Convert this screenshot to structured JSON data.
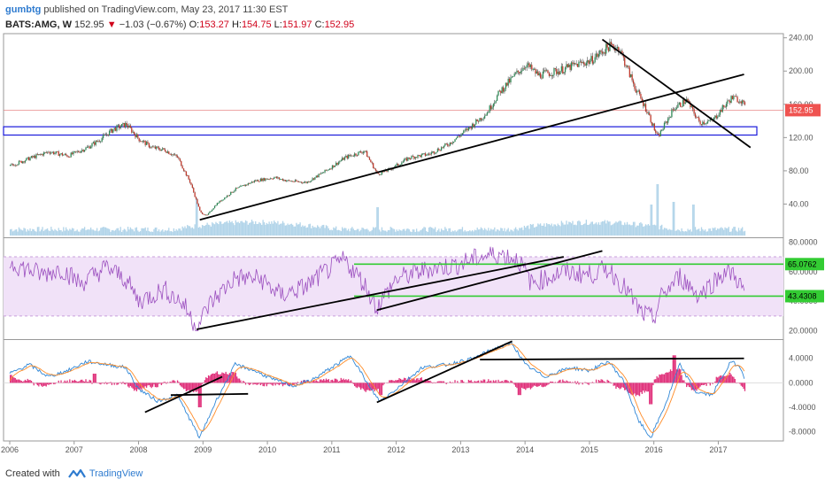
{
  "header": {
    "author": "gumbtg",
    "published_text": " published on TradingView.com, May 23, 2017 11:30 EST",
    "symbol": "BATS:AMG, W",
    "last": "152.95",
    "change": "−1.03 (−0.67%)",
    "open_label": "O:",
    "open": "153.27",
    "high_label": "H:",
    "high": "154.75",
    "low_label": "L:",
    "low": "151.97",
    "close_label": "C:",
    "close": "152.95"
  },
  "footer": {
    "created_with": "Created with",
    "brand": "TradingView",
    "logo_icon": "tradingview-logo-icon"
  },
  "colors": {
    "up": "#2e8b57",
    "down": "#c0392b",
    "volume": "#9ec9e3",
    "rsi_line": "#9b4fbf",
    "rsi_band": "#f1e2f8",
    "green_level": "#33cc33",
    "macd_line": "#2f86d6",
    "signal_line": "#ff8c28",
    "histogram": "#e0307a",
    "zone_border": "#1a1adb",
    "trendline": "#000000",
    "price_label_bg": "#ef5350"
  },
  "chart_data": [
    {
      "type": "candlestick",
      "panel": "price",
      "x_ticks": [
        "2006",
        "2007",
        "2008",
        "2009",
        "2010",
        "2011",
        "2012",
        "2013",
        "2014",
        "2015",
        "2016",
        "2017"
      ],
      "y_ticks": [
        "240.00",
        "200.00",
        "160.00",
        "120.00",
        "80.00",
        "40.00"
      ],
      "ylim": [
        0,
        245
      ],
      "current_price_label": "152.95",
      "anchors": [
        [
          2006.0,
          86
        ],
        [
          2006.3,
          95
        ],
        [
          2006.6,
          103
        ],
        [
          2006.9,
          98
        ],
        [
          2007.2,
          108
        ],
        [
          2007.4,
          118
        ],
        [
          2007.6,
          130
        ],
        [
          2007.8,
          136
        ],
        [
          2008.0,
          118
        ],
        [
          2008.2,
          108
        ],
        [
          2008.4,
          105
        ],
        [
          2008.6,
          96
        ],
        [
          2008.8,
          65
        ],
        [
          2008.95,
          30
        ],
        [
          2009.05,
          26
        ],
        [
          2009.2,
          40
        ],
        [
          2009.5,
          58
        ],
        [
          2009.8,
          68
        ],
        [
          2010.1,
          72
        ],
        [
          2010.3,
          68
        ],
        [
          2010.6,
          66
        ],
        [
          2010.9,
          80
        ],
        [
          2011.2,
          96
        ],
        [
          2011.5,
          104
        ],
        [
          2011.7,
          76
        ],
        [
          2011.9,
          82
        ],
        [
          2012.2,
          96
        ],
        [
          2012.5,
          100
        ],
        [
          2012.8,
          112
        ],
        [
          2013.1,
          130
        ],
        [
          2013.4,
          150
        ],
        [
          2013.6,
          175
        ],
        [
          2013.8,
          192
        ],
        [
          2014.0,
          208
        ],
        [
          2014.2,
          195
        ],
        [
          2014.5,
          200
        ],
        [
          2014.8,
          208
        ],
        [
          2015.0,
          212
        ],
        [
          2015.3,
          230
        ],
        [
          2015.45,
          228
        ],
        [
          2015.7,
          180
        ],
        [
          2015.9,
          150
        ],
        [
          2016.05,
          120
        ],
        [
          2016.3,
          155
        ],
        [
          2016.5,
          165
        ],
        [
          2016.7,
          138
        ],
        [
          2016.9,
          140
        ],
        [
          2017.0,
          150
        ],
        [
          2017.2,
          168
        ],
        [
          2017.35,
          165
        ],
        [
          2017.42,
          153
        ]
      ],
      "volume_spikes": [
        [
          2016.05,
          58
        ],
        [
          2016.3,
          38
        ],
        [
          2011.7,
          32
        ],
        [
          2008.9,
          42
        ],
        [
          2015.95,
          35
        ],
        [
          2016.6,
          35
        ]
      ],
      "horizontal_zone": [
        123,
        133
      ],
      "trendlines": [
        {
          "from": [
            2008.95,
            21
          ],
          "to": [
            2017.4,
            196
          ]
        },
        {
          "from": [
            2015.2,
            238
          ],
          "to": [
            2017.5,
            108
          ]
        }
      ]
    },
    {
      "type": "line",
      "panel": "rsi",
      "name": "",
      "y_ticks": [
        "80.0000",
        "60.0000",
        "40.0000",
        "20.0000"
      ],
      "ylim": [
        15,
        82
      ],
      "band": [
        30,
        70
      ],
      "levels": [
        {
          "value": 65.0762,
          "label": "65.0762"
        },
        {
          "value": 43.4308,
          "label": "43.4308"
        }
      ],
      "anchors": [
        [
          2006.0,
          66
        ],
        [
          2006.5,
          58
        ],
        [
          2006.8,
          62
        ],
        [
          2007.1,
          52
        ],
        [
          2007.5,
          63
        ],
        [
          2007.8,
          55
        ],
        [
          2008.0,
          40
        ],
        [
          2008.4,
          48
        ],
        [
          2008.7,
          38
        ],
        [
          2008.9,
          22
        ],
        [
          2009.1,
          38
        ],
        [
          2009.5,
          56
        ],
        [
          2009.9,
          55
        ],
        [
          2010.2,
          44
        ],
        [
          2010.6,
          50
        ],
        [
          2010.9,
          60
        ],
        [
          2011.2,
          68
        ],
        [
          2011.5,
          52
        ],
        [
          2011.7,
          36
        ],
        [
          2012.0,
          55
        ],
        [
          2012.5,
          62
        ],
        [
          2012.9,
          64
        ],
        [
          2013.3,
          70
        ],
        [
          2013.6,
          72
        ],
        [
          2013.9,
          68
        ],
        [
          2014.1,
          52
        ],
        [
          2014.6,
          60
        ],
        [
          2015.0,
          58
        ],
        [
          2015.3,
          62
        ],
        [
          2015.6,
          46
        ],
        [
          2015.8,
          32
        ],
        [
          2016.0,
          28
        ],
        [
          2016.1,
          42
        ],
        [
          2016.4,
          57
        ],
        [
          2016.7,
          44
        ],
        [
          2016.9,
          52
        ],
        [
          2017.1,
          60
        ],
        [
          2017.25,
          58
        ],
        [
          2017.42,
          45
        ]
      ],
      "trendlines": [
        {
          "from": [
            2008.9,
            21
          ],
          "to": [
            2014.6,
            70
          ]
        },
        {
          "from": [
            2011.7,
            34
          ],
          "to": [
            2015.2,
            74
          ]
        },
        {
          "from": [
            2011.2,
            43.4
          ],
          "to": [
            2014.0,
            43.4
          ]
        }
      ]
    },
    {
      "type": "line",
      "panel": "macd",
      "y_ticks": [
        "4.0000",
        "0.0000",
        "-4.0000",
        "-8.0000"
      ],
      "ylim": [
        -9.5,
        7
      ],
      "macd_anchors": [
        [
          2006.0,
          1.5
        ],
        [
          2006.3,
          3.0
        ],
        [
          2006.6,
          1.0
        ],
        [
          2006.9,
          2.0
        ],
        [
          2007.2,
          3.5
        ],
        [
          2007.5,
          3.0
        ],
        [
          2007.8,
          2.5
        ],
        [
          2008.0,
          -1.0
        ],
        [
          2008.3,
          -3.0
        ],
        [
          2008.6,
          -2.0
        ],
        [
          2008.8,
          -6.0
        ],
        [
          2008.95,
          -9.0
        ],
        [
          2009.2,
          -3.0
        ],
        [
          2009.5,
          3.0
        ],
        [
          2009.8,
          2.0
        ],
        [
          2010.1,
          0.5
        ],
        [
          2010.4,
          -0.5
        ],
        [
          2010.7,
          0.5
        ],
        [
          2011.0,
          2.5
        ],
        [
          2011.3,
          4.5
        ],
        [
          2011.6,
          -1.0
        ],
        [
          2011.75,
          -3.0
        ],
        [
          2012.0,
          -1.0
        ],
        [
          2012.4,
          2.5
        ],
        [
          2012.8,
          3.0
        ],
        [
          2013.2,
          4.0
        ],
        [
          2013.5,
          5.5
        ],
        [
          2013.8,
          6.5
        ],
        [
          2014.0,
          3.0
        ],
        [
          2014.3,
          1.0
        ],
        [
          2014.7,
          2.5
        ],
        [
          2015.0,
          2.0
        ],
        [
          2015.3,
          3.5
        ],
        [
          2015.55,
          0.0
        ],
        [
          2015.75,
          -6.0
        ],
        [
          2015.95,
          -9.0
        ],
        [
          2016.2,
          -3.0
        ],
        [
          2016.4,
          3.0
        ],
        [
          2016.65,
          -1.5
        ],
        [
          2016.9,
          -2.0
        ],
        [
          2017.2,
          3.5
        ],
        [
          2017.35,
          2.5
        ],
        [
          2017.42,
          0.5
        ]
      ],
      "histogram_spikes": [
        [
          2008.95,
          -4.0
        ],
        [
          2016.3,
          4.5
        ],
        [
          2015.95,
          -3.5
        ],
        [
          2011.75,
          -2.0
        ],
        [
          2013.9,
          -2.0
        ],
        [
          2007.3,
          1.5
        ]
      ],
      "trendlines": [
        {
          "from": [
            2008.1,
            -4.8
          ],
          "to": [
            2009.3,
            1.0
          ]
        },
        {
          "from": [
            2008.5,
            -2.0
          ],
          "to": [
            2009.7,
            -1.8
          ]
        },
        {
          "from": [
            2011.7,
            -3.2
          ],
          "to": [
            2013.8,
            6.8
          ]
        },
        {
          "from": [
            2013.3,
            3.8
          ],
          "to": [
            2017.4,
            4.0
          ]
        }
      ]
    }
  ]
}
